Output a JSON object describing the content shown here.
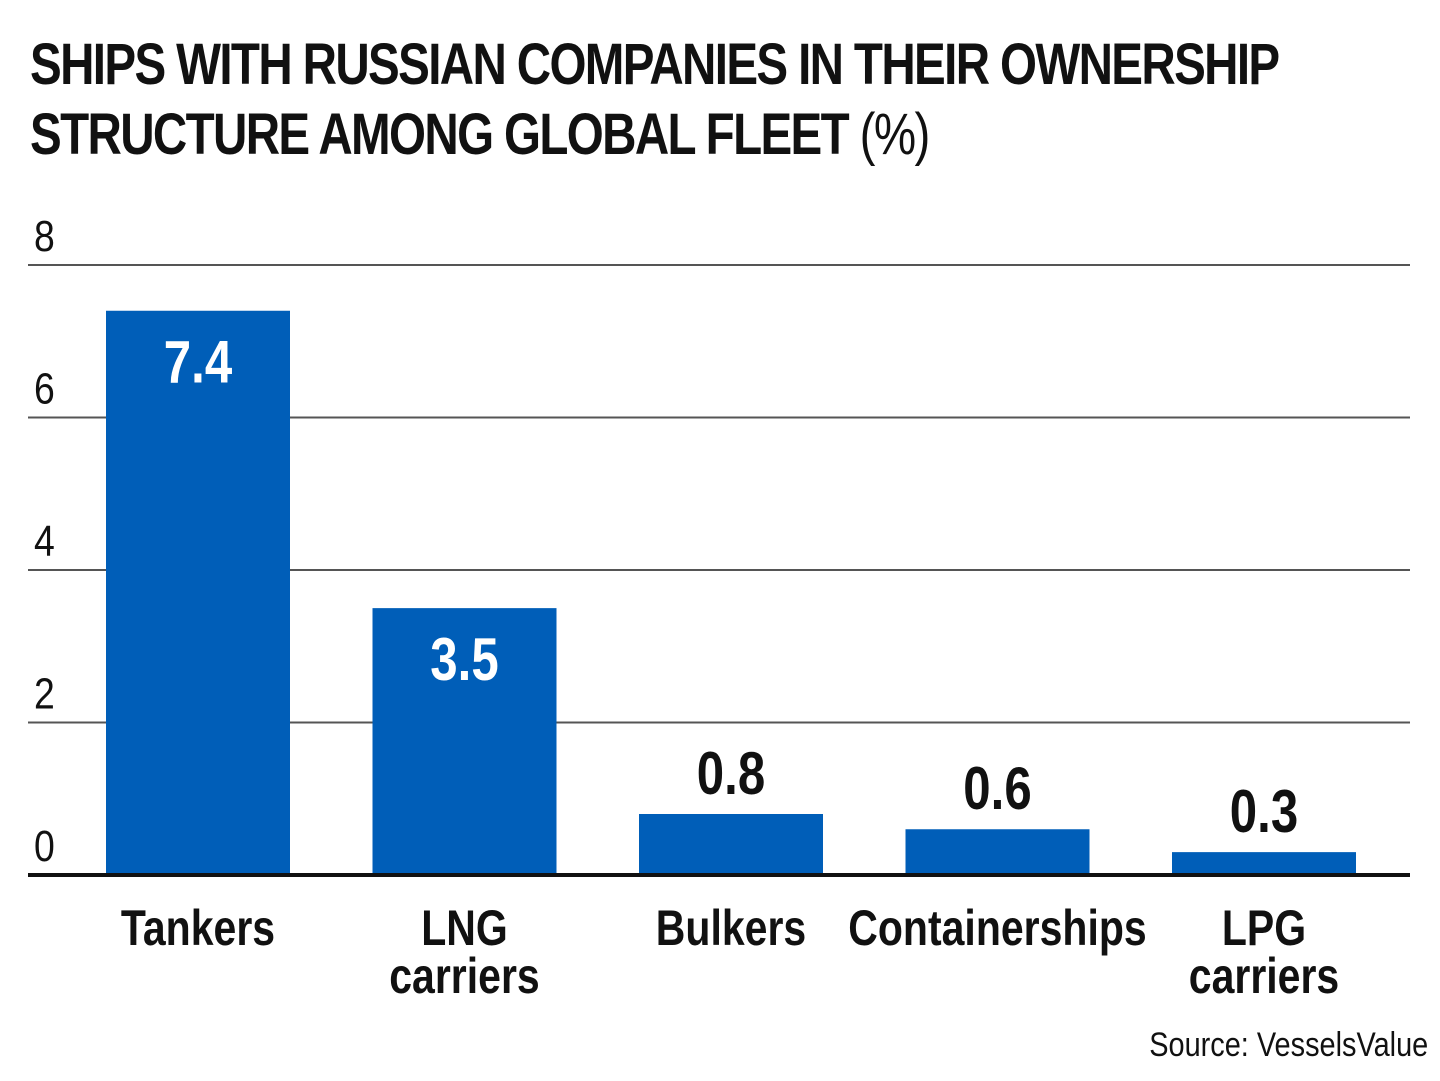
{
  "title": "SHIPS WITH RUSSIAN COMPANIES IN THEIR OWNERSHIP STRUCTURE AMONG GLOBAL FLEET",
  "title_unit": "(%)",
  "source": "Source: VesselsValue",
  "chart_data": {
    "type": "bar",
    "categories": [
      [
        "Tankers"
      ],
      [
        "LNG",
        "carriers"
      ],
      [
        "Bulkers"
      ],
      [
        "Containerships"
      ],
      [
        "LPG",
        "carriers"
      ]
    ],
    "values": [
      7.4,
      3.5,
      0.8,
      0.6,
      0.3
    ],
    "value_labels": [
      "7.4",
      "3.5",
      "0.8",
      "0.6",
      "0.3"
    ],
    "yticks": [
      "0",
      "2",
      "4",
      "6",
      "8"
    ],
    "ylim": [
      0,
      8
    ],
    "grid": true,
    "bar_color": "#005EB8",
    "label_inside_color": "#ffffff",
    "label_outside_color": "#111111",
    "grid_color": "#555555",
    "axis_color": "#111111"
  }
}
